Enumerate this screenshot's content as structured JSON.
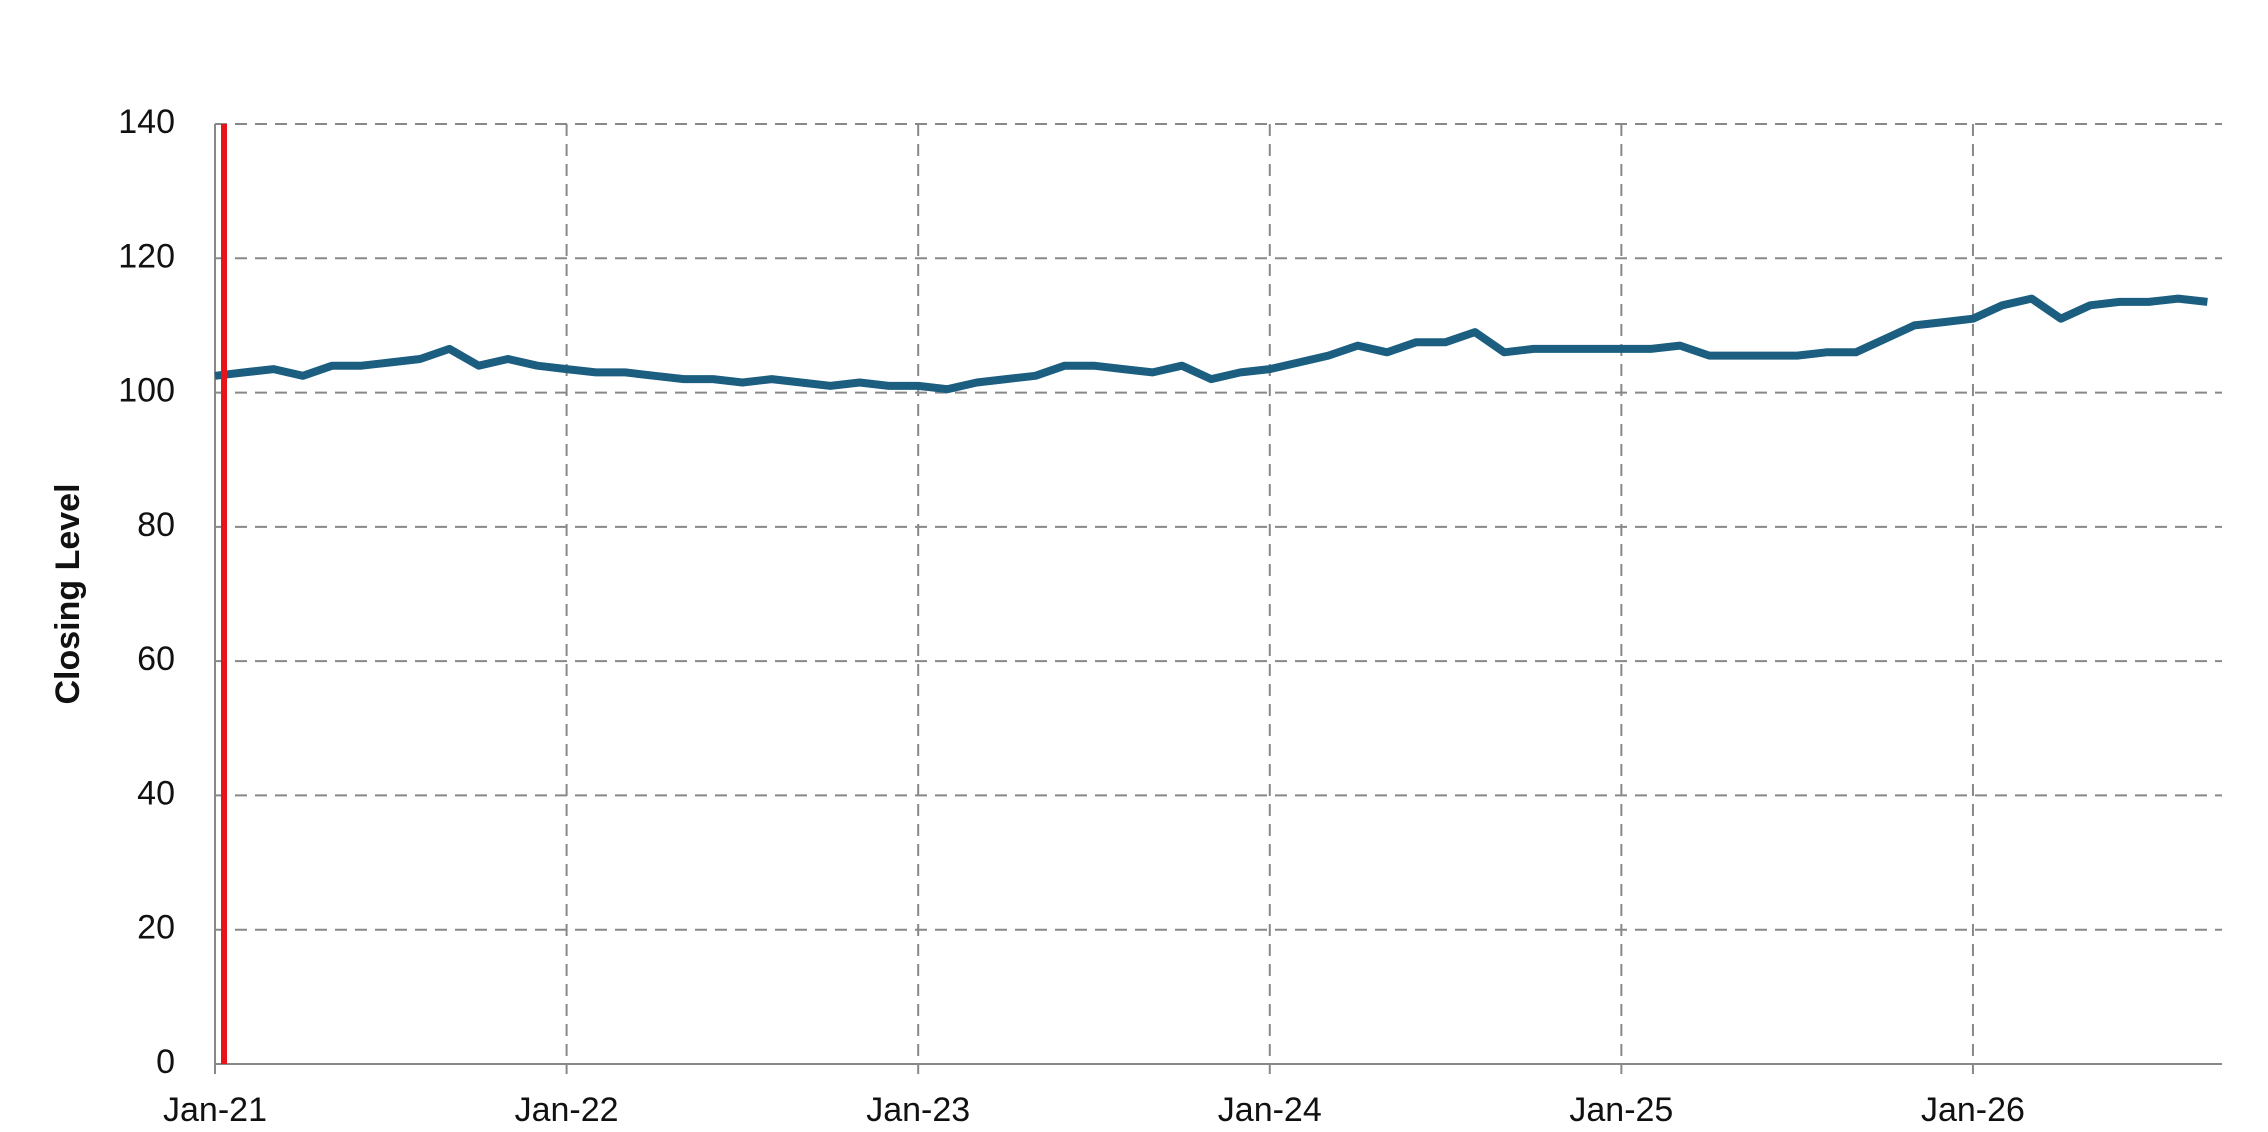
{
  "chart_data": {
    "type": "line",
    "y_label": "Closing Level",
    "x": [
      "2021-01",
      "2021-02",
      "2021-03",
      "2021-04",
      "2021-05",
      "2021-06",
      "2021-07",
      "2021-08",
      "2021-09",
      "2021-10",
      "2021-11",
      "2021-12",
      "2022-01",
      "2022-02",
      "2022-03",
      "2022-04",
      "2022-05",
      "2022-06",
      "2022-07",
      "2022-08",
      "2022-09",
      "2022-10",
      "2022-11",
      "2022-12",
      "2023-01",
      "2023-02",
      "2023-03",
      "2023-04",
      "2023-05",
      "2023-06",
      "2023-07",
      "2023-08",
      "2023-09",
      "2023-10",
      "2023-11",
      "2023-12",
      "2024-01",
      "2024-02",
      "2024-03",
      "2024-04",
      "2024-05",
      "2024-06",
      "2024-07",
      "2024-08",
      "2024-09",
      "2024-10",
      "2024-11",
      "2024-12",
      "2025-01",
      "2025-02",
      "2025-03",
      "2025-04",
      "2025-05",
      "2025-06",
      "2025-07",
      "2025-08",
      "2025-09",
      "2025-10",
      "2025-11",
      "2025-12",
      "2026-01",
      "2026-02",
      "2026-03",
      "2026-04",
      "2026-05",
      "2026-06",
      "2026-07",
      "2026-08",
      "2026-09"
    ],
    "series": [
      {
        "color": "#1b5e80",
        "values": [
          102.5,
          103,
          103.5,
          102.5,
          104,
          104,
          104.5,
          105,
          106.5,
          104,
          105,
          104,
          103.5,
          103,
          103,
          102.5,
          102,
          102,
          101.5,
          102,
          101.5,
          101,
          101.5,
          101,
          101,
          100.5,
          101.5,
          102,
          102.5,
          104,
          104,
          103.5,
          103,
          104,
          102,
          103,
          103.5,
          104.5,
          105.5,
          107,
          106,
          107.5,
          107.5,
          109,
          106,
          106.5,
          106.5,
          106.5,
          106.5,
          106.5,
          107,
          105.5,
          105.5,
          105.5,
          105.5,
          106,
          106,
          108,
          110,
          110.5,
          111,
          113,
          114,
          111,
          113,
          113.5,
          113.5,
          114,
          113.5
        ]
      }
    ],
    "xlim": [
      "2021-01",
      "2026-09"
    ],
    "xticks": [
      {
        "value": "2021-01",
        "label": "Jan-21"
      },
      {
        "value": "2022-01",
        "label": "Jan-22"
      },
      {
        "value": "2023-01",
        "label": "Jan-23"
      },
      {
        "value": "2024-01",
        "label": "Jan-24"
      },
      {
        "value": "2025-01",
        "label": "Jan-25"
      },
      {
        "value": "2026-01",
        "label": "Jan-26"
      }
    ],
    "ylim": [
      0,
      140
    ],
    "yticks": [
      0,
      20,
      40,
      60,
      80,
      100,
      120,
      140
    ],
    "grid": true,
    "vline": {
      "x": "2021-01",
      "color": "#e8141b"
    }
  }
}
